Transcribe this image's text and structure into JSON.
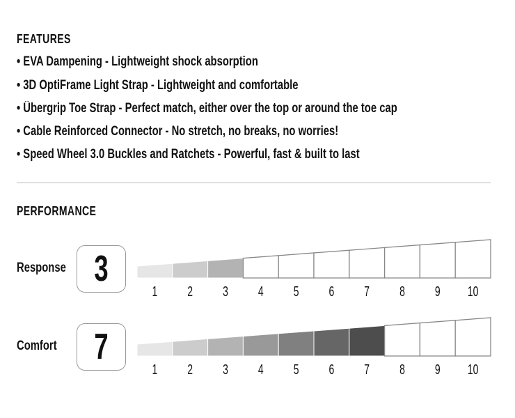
{
  "features": {
    "title": "FEATURES",
    "items": [
      "• EVA Dampening - Lightweight shock absorption",
      "• 3D OptiFrame Light Strap - Lightweight and comfortable",
      "• Übergrip Toe Strap - Perfect match, either over the top or around the toe cap",
      "• Cable Reinforced Connector - No stretch, no breaks, no worries!",
      "• Speed Wheel 3.0 Buckles and Ratchets - Powerful, fast & built to last"
    ]
  },
  "performance": {
    "title": "PERFORMANCE",
    "scale": [
      "1",
      "2",
      "3",
      "4",
      "5",
      "6",
      "7",
      "8",
      "9",
      "10"
    ],
    "fill_colors": [
      "#e6e6e6",
      "#cccccc",
      "#b3b3b3",
      "#999999",
      "#808080",
      "#666666",
      "#4d4d4d",
      "#333333",
      "#1a1a1a",
      "#000000"
    ],
    "ratings": [
      {
        "label": "Response",
        "value": 3,
        "value_text": "3"
      },
      {
        "label": "Comfort",
        "value": 7,
        "value_text": "7"
      }
    ]
  }
}
